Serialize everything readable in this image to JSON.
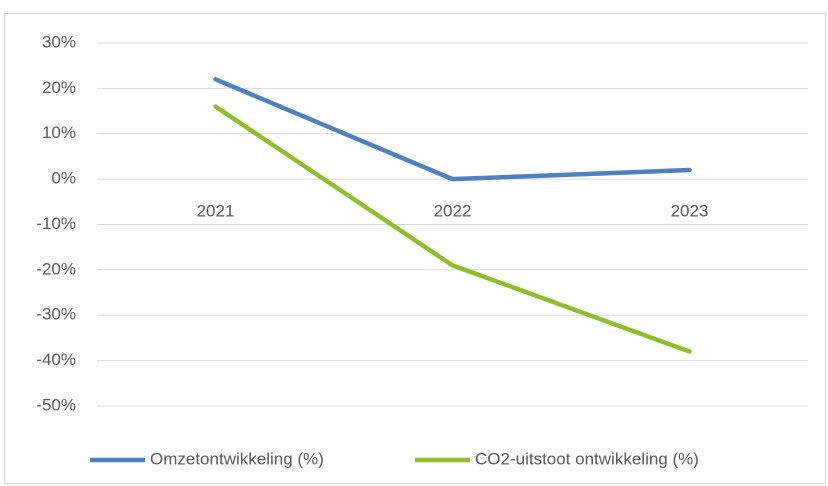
{
  "chart_data": {
    "type": "line",
    "categories": [
      "2021",
      "2022",
      "2023"
    ],
    "series": [
      {
        "name": "Omzetontwikkeling (%)",
        "color": "#4f81bd",
        "values": [
          22,
          0,
          2
        ]
      },
      {
        "name": "CO2-uitstoot ontwikkeling (%)",
        "color": "#8dbf2c",
        "values": [
          16,
          -19,
          -38
        ]
      }
    ],
    "ylim": [
      -50,
      30
    ],
    "yticks": [
      {
        "value": -50,
        "label": "-50%"
      },
      {
        "value": -40,
        "label": "-40%"
      },
      {
        "value": -30,
        "label": "-30%"
      },
      {
        "value": -20,
        "label": "-20%"
      },
      {
        "value": -10,
        "label": "-10%"
      },
      {
        "value": 0,
        "label": "0%"
      },
      {
        "value": 10,
        "label": "10%"
      },
      {
        "value": 20,
        "label": "20%"
      },
      {
        "value": 30,
        "label": "30%"
      }
    ],
    "grid": true,
    "legend": "bottom"
  }
}
